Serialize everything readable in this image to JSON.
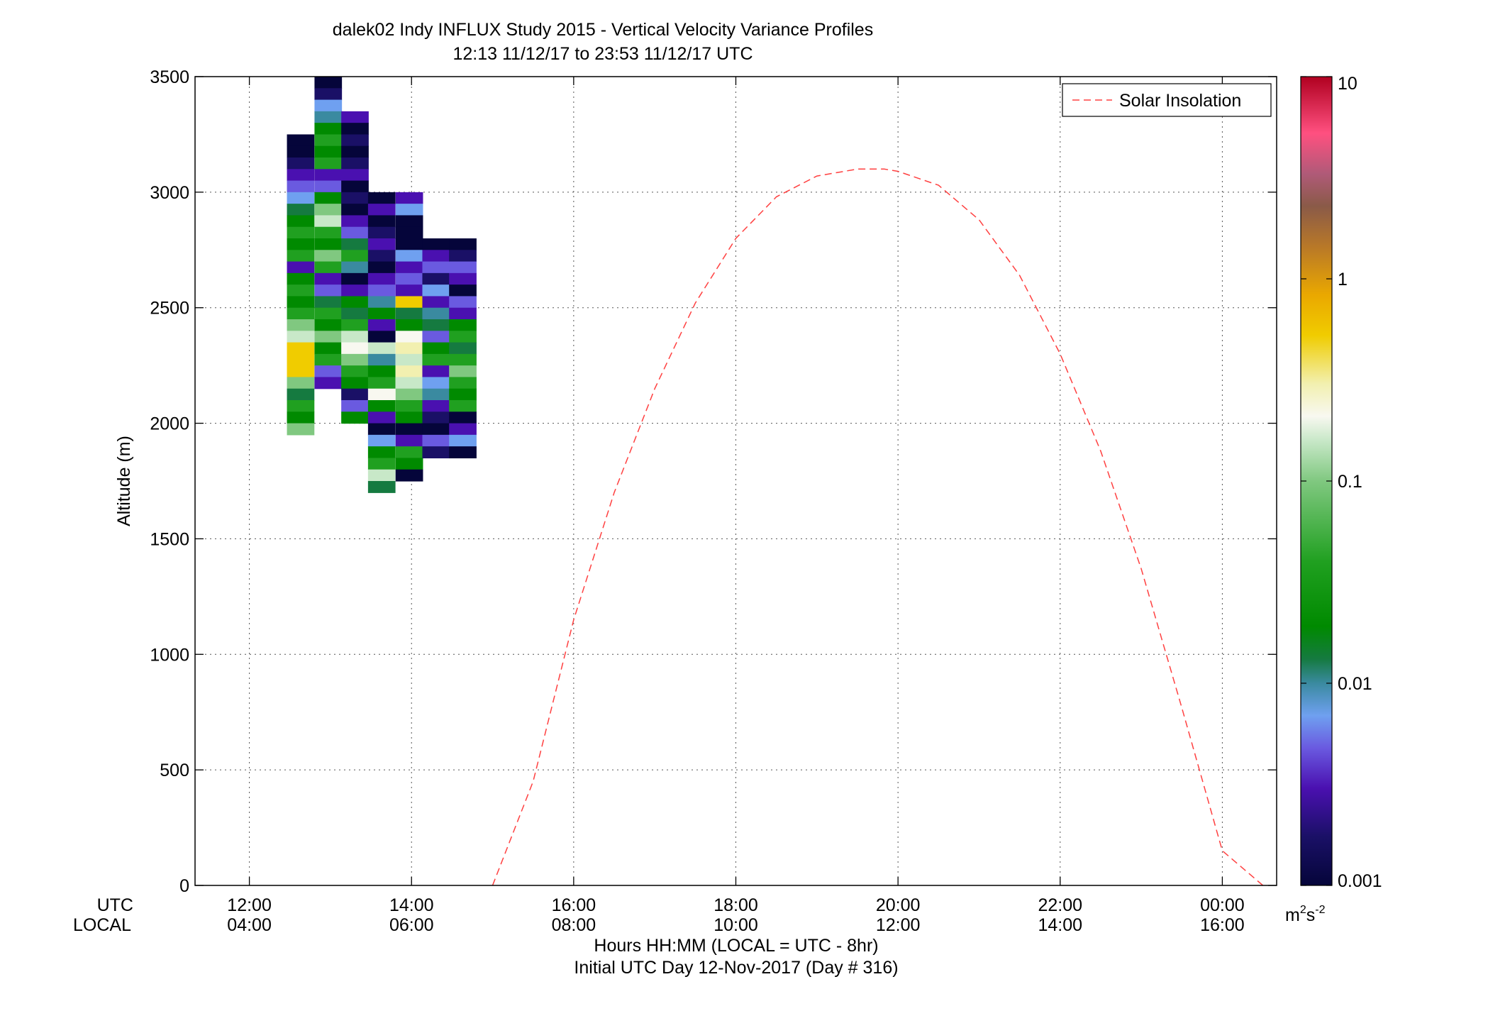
{
  "chart_data": {
    "type": "heatmap",
    "title": "dalek02 Indy INFLUX Study 2015 - Vertical Velocity Variance Profiles",
    "subtitle": "12:13 11/12/17 to 23:53 11/12/17  UTC",
    "xlabel": "Hours HH:MM  (LOCAL = UTC - 8hr)",
    "xlabel2": "Initial UTC Day 12-Nov-2017 (Day # 316)",
    "ylabel": "Altitude (m)",
    "x_row_labels": [
      "UTC",
      "LOCAL"
    ],
    "xlim": [
      11.33,
      24.67
    ],
    "ylim": [
      0,
      3500
    ],
    "x_ticks": [
      {
        "value": 12,
        "utc": "12:00",
        "local": "04:00"
      },
      {
        "value": 14,
        "utc": "14:00",
        "local": "06:00"
      },
      {
        "value": 16,
        "utc": "16:00",
        "local": "08:00"
      },
      {
        "value": 18,
        "utc": "18:00",
        "local": "10:00"
      },
      {
        "value": 20,
        "utc": "20:00",
        "local": "12:00"
      },
      {
        "value": 22,
        "utc": "22:00",
        "local": "14:00"
      },
      {
        "value": 24,
        "utc": "00:00",
        "local": "16:00"
      }
    ],
    "y_ticks": [
      {
        "value": 0,
        "label": "0"
      },
      {
        "value": 500,
        "label": "500"
      },
      {
        "value": 1000,
        "label": "1000"
      },
      {
        "value": 1500,
        "label": "1500"
      },
      {
        "value": 2000,
        "label": "2000"
      },
      {
        "value": 2500,
        "label": "2500"
      },
      {
        "value": 3000,
        "label": "3000"
      },
      {
        "value": 3500,
        "label": "3500"
      }
    ],
    "grid": true,
    "legend": {
      "position": "top-right",
      "entries": [
        {
          "name": "Solar Insolation",
          "color": "#ff4040",
          "style": "dashed"
        }
      ]
    },
    "colorbar": {
      "scale": "log",
      "range": [
        0.001,
        10
      ],
      "ticks": [
        {
          "value": 0.001,
          "label": "0.001"
        },
        {
          "value": 0.01,
          "label": "0.01"
        },
        {
          "value": 0.1,
          "label": "0.1"
        },
        {
          "value": 1,
          "label": "1"
        },
        {
          "value": 10,
          "label": "10"
        }
      ],
      "unit_base": "m",
      "unit_sup1": "2",
      "unit_mid": "s",
      "unit_sup2": "-2",
      "stops": [
        {
          "at": 0.0,
          "color": "#05053a"
        },
        {
          "at": 0.06,
          "color": "#1a1066"
        },
        {
          "at": 0.12,
          "color": "#4a10b0"
        },
        {
          "at": 0.17,
          "color": "#6a5ae0"
        },
        {
          "at": 0.21,
          "color": "#6fa0f0"
        },
        {
          "at": 0.25,
          "color": "#3a8aa0"
        },
        {
          "at": 0.28,
          "color": "#157a40"
        },
        {
          "at": 0.32,
          "color": "#008a00"
        },
        {
          "at": 0.4,
          "color": "#20a020"
        },
        {
          "at": 0.5,
          "color": "#80c880"
        },
        {
          "at": 0.55,
          "color": "#c8e8c8"
        },
        {
          "at": 0.58,
          "color": "#f8f8f0"
        },
        {
          "at": 0.62,
          "color": "#f2f0b0"
        },
        {
          "at": 0.68,
          "color": "#f0cc00"
        },
        {
          "at": 0.73,
          "color": "#eaa800"
        },
        {
          "at": 0.79,
          "color": "#b87828"
        },
        {
          "at": 0.84,
          "color": "#8a5a48"
        },
        {
          "at": 0.88,
          "color": "#b05a78"
        },
        {
          "at": 0.93,
          "color": "#ff5080"
        },
        {
          "at": 1.0,
          "color": "#b00020"
        }
      ]
    },
    "solar_insolation": {
      "x": [
        15.0,
        15.5,
        16.0,
        16.5,
        17.0,
        17.5,
        18.0,
        18.5,
        19.0,
        19.5,
        19.83,
        20.0,
        20.5,
        21.0,
        21.5,
        22.0,
        22.5,
        23.0,
        23.5,
        24.0,
        24.5
      ],
      "y": [
        0,
        450,
        1150,
        1700,
        2150,
        2520,
        2800,
        2980,
        3070,
        3100,
        3100,
        3090,
        3030,
        2880,
        2640,
        2300,
        1880,
        1370,
        770,
        150,
        0
      ]
    },
    "variance_columns": [
      {
        "x": 12.63,
        "y_top": 3250,
        "colors": [
          "#05053a",
          "#05053a",
          "#1a1066",
          "#4a10b0",
          "#6a5ae0",
          "#6fa0f0",
          "#157a40",
          "#008a00",
          "#20a020",
          "#008a00",
          "#20a020",
          "#4a10b0",
          "#008a00",
          "#20a020",
          "#008a00",
          "#20a020",
          "#80c880",
          "#c8e8c8",
          "#f0cc00",
          "#f0cc00",
          "#f0cc00",
          "#80c880",
          "#157a40",
          "#20a020",
          "#008a00",
          "#80c880"
        ]
      },
      {
        "x": 12.97,
        "y_top": 3500,
        "colors": [
          "#05053a",
          "#1a1066",
          "#6fa0f0",
          "#3a8aa0",
          "#008a00",
          "#20a020",
          "#008a00",
          "#20a020",
          "#4a10b0",
          "#6a5ae0",
          "#008a00",
          "#80c880",
          "#c8e8c8",
          "#20a020",
          "#008a00",
          "#80c880",
          "#20a020",
          "#4a10b0",
          "#6a5ae0",
          "#157a40",
          "#20a020",
          "#008a00",
          "#80c880",
          "#008a00",
          "#20a020",
          "#6a5ae0",
          "#4a10b0"
        ]
      },
      {
        "x": 13.3,
        "y_top": 3350,
        "colors": [
          "#4a10b0",
          "#05053a",
          "#1a1066",
          "#05053a",
          "#1a1066",
          "#4a10b0",
          "#05053a",
          "#1a1066",
          "#05053a",
          "#4a10b0",
          "#6a5ae0",
          "#157a40",
          "#20a020",
          "#3a8aa0",
          "#05053a",
          "#4a10b0",
          "#008a00",
          "#157a40",
          "#20a020",
          "#c8e8c8",
          "#f8f8f0",
          "#80c880",
          "#20a020",
          "#008a00",
          "#1a1066",
          "#6a5ae0",
          "#008a00"
        ]
      },
      {
        "x": 13.63,
        "y_top": 3000,
        "colors": [
          "#05053a",
          "#4a10b0",
          "#05053a",
          "#1a1066",
          "#4a10b0",
          "#1a1066",
          "#05053a",
          "#4a10b0",
          "#6a5ae0",
          "#3a8aa0",
          "#008a00",
          "#4a10b0",
          "#05053a",
          "#c8e8c8",
          "#3a8aa0",
          "#008a00",
          "#20a020",
          "#f8f8f0",
          "#008a00",
          "#4a10b0",
          "#05053a",
          "#6fa0f0",
          "#008a00",
          "#20a020",
          "#c8e8c8",
          "#157a40"
        ]
      },
      {
        "x": 13.97,
        "y_top": 3000,
        "colors": [
          "#4a10b0",
          "#6fa0f0",
          "#05053a",
          "#05053a",
          "#05053a",
          "#6fa0f0",
          "#4a10b0",
          "#6a5ae0",
          "#4a10b0",
          "#f0cc00",
          "#157a40",
          "#008a00",
          "#f8f8f0",
          "#f2f0b0",
          "#c8e8c8",
          "#f2f0b0",
          "#c8e8c8",
          "#80c880",
          "#20a020",
          "#008a00",
          "#05053a",
          "#4a10b0",
          "#20a020",
          "#008a00",
          "#05053a"
        ]
      },
      {
        "x": 14.3,
        "y_top": 2800,
        "colors": [
          "#05053a",
          "#4a10b0",
          "#6a5ae0",
          "#1a1066",
          "#6fa0f0",
          "#4a10b0",
          "#3a8aa0",
          "#157a40",
          "#6a5ae0",
          "#008a00",
          "#20a020",
          "#4a10b0",
          "#6fa0f0",
          "#3a8aa0",
          "#4a10b0",
          "#1a1066",
          "#05053a",
          "#6a5ae0",
          "#1a1066"
        ]
      },
      {
        "x": 14.63,
        "y_top": 2800,
        "colors": [
          "#05053a",
          "#1a1066",
          "#6a5ae0",
          "#4a10b0",
          "#05053a",
          "#6a5ae0",
          "#4a10b0",
          "#008a00",
          "#20a020",
          "#157a40",
          "#20a020",
          "#80c880",
          "#20a020",
          "#008a00",
          "#20a020",
          "#05053a",
          "#4a10b0",
          "#6fa0f0",
          "#05053a"
        ]
      }
    ]
  }
}
